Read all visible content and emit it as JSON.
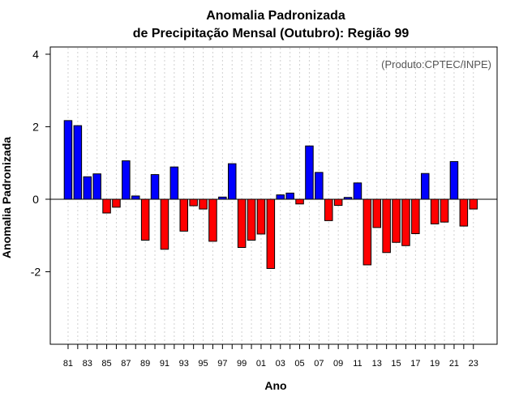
{
  "chart_data": {
    "type": "bar",
    "title_line1": "Anomalia Padronizada",
    "title_line2": "de Precipitação Mensal (Outubro): Região 99",
    "xlabel": "Ano",
    "ylabel": "Anomalia Padronizada",
    "source_note": "(Produto:CPTEC/INPE)",
    "ylim": [
      -4,
      4.2
    ],
    "yticks": [
      -2,
      0,
      2,
      4
    ],
    "ytick_labels": [
      "-2",
      "0",
      "2",
      "4"
    ],
    "categories": [
      "81",
      "82",
      "83",
      "84",
      "85",
      "86",
      "87",
      "88",
      "89",
      "90",
      "91",
      "92",
      "93",
      "94",
      "95",
      "96",
      "97",
      "98",
      "99",
      "00",
      "01",
      "02",
      "03",
      "04",
      "05",
      "06",
      "07",
      "08",
      "09",
      "10",
      "11",
      "12",
      "13",
      "14",
      "15",
      "16",
      "17",
      "18",
      "19",
      "20",
      "21",
      "22",
      "23"
    ],
    "xtick_labels": [
      "81",
      "83",
      "85",
      "87",
      "89",
      "91",
      "93",
      "95",
      "97",
      "99",
      "01",
      "03",
      "05",
      "07",
      "09",
      "11",
      "13",
      "15",
      "17",
      "19",
      "21",
      "23"
    ],
    "values": [
      2.17,
      2.03,
      0.62,
      0.7,
      -0.38,
      -0.22,
      1.06,
      0.09,
      -1.13,
      0.68,
      -1.38,
      0.89,
      -0.88,
      -0.18,
      -0.27,
      -1.16,
      0.06,
      0.98,
      -1.33,
      -1.13,
      -0.96,
      -1.91,
      0.12,
      0.17,
      -0.13,
      1.47,
      0.74,
      -0.59,
      -0.17,
      0.05,
      0.45,
      -1.81,
      -0.78,
      -1.47,
      -1.19,
      -1.28,
      -0.95,
      0.71,
      -0.68,
      -0.63,
      1.04,
      -0.74,
      -0.27
    ],
    "colors": {
      "positive": "#0000ff",
      "negative": "#ff0000",
      "outline": "#000000",
      "grid": "#d0d0d0"
    },
    "grid": "vertical dotted"
  }
}
